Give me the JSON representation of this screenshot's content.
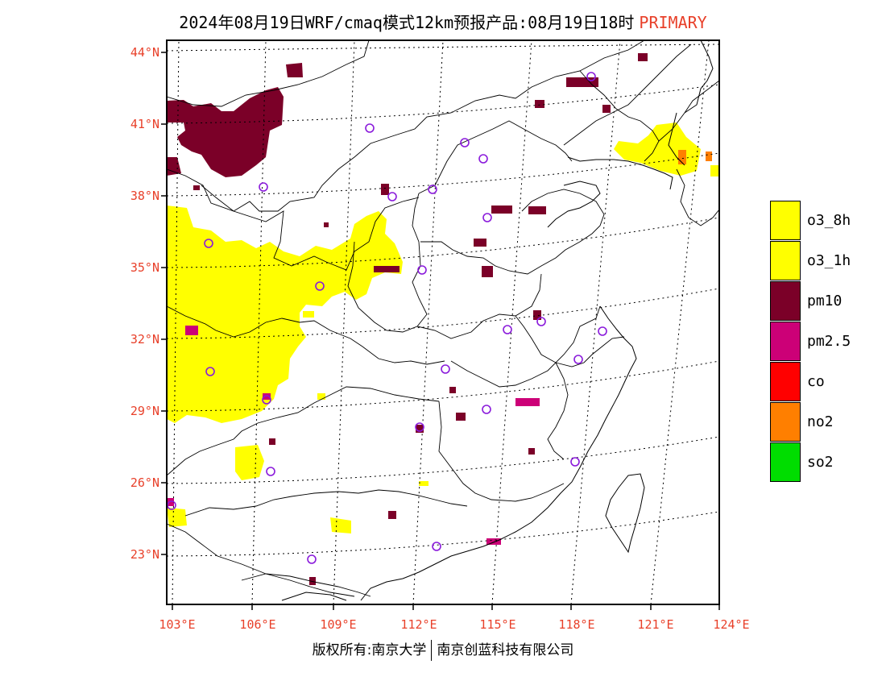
{
  "title": {
    "main": "2024年08月19日WRF/cmaq模式12km预报产品:08月19日18时",
    "tag": "PRIMARY"
  },
  "lat_labels": [
    "44°N",
    "41°N",
    "38°N",
    "35°N",
    "32°N",
    "29°N",
    "26°N",
    "23°N"
  ],
  "lon_labels": [
    "103°E",
    "106°E",
    "109°E",
    "112°E",
    "115°E",
    "118°E",
    "121°E",
    "124°E"
  ],
  "legend": [
    {
      "label": "o3_8h",
      "color": "#ffff00"
    },
    {
      "label": "o3_1h",
      "color": "#ffff00"
    },
    {
      "label": "pm10",
      "color": "#7b0028"
    },
    {
      "label": "pm2.5",
      "color": "#cc0077"
    },
    {
      "label": "co",
      "color": "#ff0000"
    },
    {
      "label": "no2",
      "color": "#ff7f00"
    },
    {
      "label": "so2",
      "color": "#00dd00"
    }
  ],
  "copyright": {
    "left": "版权所有:南京大学",
    "right": "南京创蓝科技有限公司"
  },
  "colors": {
    "o3": "#ffff00",
    "pm10": "#7b0028",
    "pm25": "#cc0077",
    "no2": "#ff7f00",
    "station": "#8a1adb",
    "label_red": "#e8402a"
  }
}
